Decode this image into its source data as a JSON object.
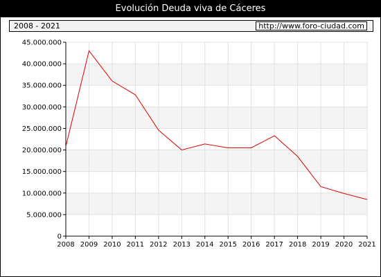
{
  "chart_data": {
    "type": "line",
    "title": "Evolución Deuda viva de Cáceres",
    "range_label": "2008 - 2021",
    "source": "http://www.foro-ciudad.com",
    "x": [
      "2008",
      "2009",
      "2010",
      "2011",
      "2012",
      "2013",
      "2014",
      "2015",
      "2016",
      "2017",
      "2018",
      "2019",
      "2020",
      "2021"
    ],
    "series": [
      {
        "name": "",
        "values": [
          20800000,
          43000000,
          36000000,
          32800000,
          24600000,
          20000000,
          21400000,
          20500000,
          20500000,
          23300000,
          18500000,
          11500000,
          9900000,
          8500000
        ]
      }
    ],
    "yticks": [
      0,
      5000000,
      10000000,
      15000000,
      20000000,
      25000000,
      30000000,
      35000000,
      40000000,
      45000000
    ],
    "ytick_labels": [
      "0",
      "5.000.000",
      "10.000.000",
      "15.000.000",
      "20.000.000",
      "25.000.000",
      "30.000.000",
      "35.000.000",
      "40.000.000",
      "45.000.000"
    ],
    "ylim": [
      0,
      45000000
    ],
    "grid": true,
    "line_color": "#dd0000",
    "band_color": "#f4f4f4"
  }
}
